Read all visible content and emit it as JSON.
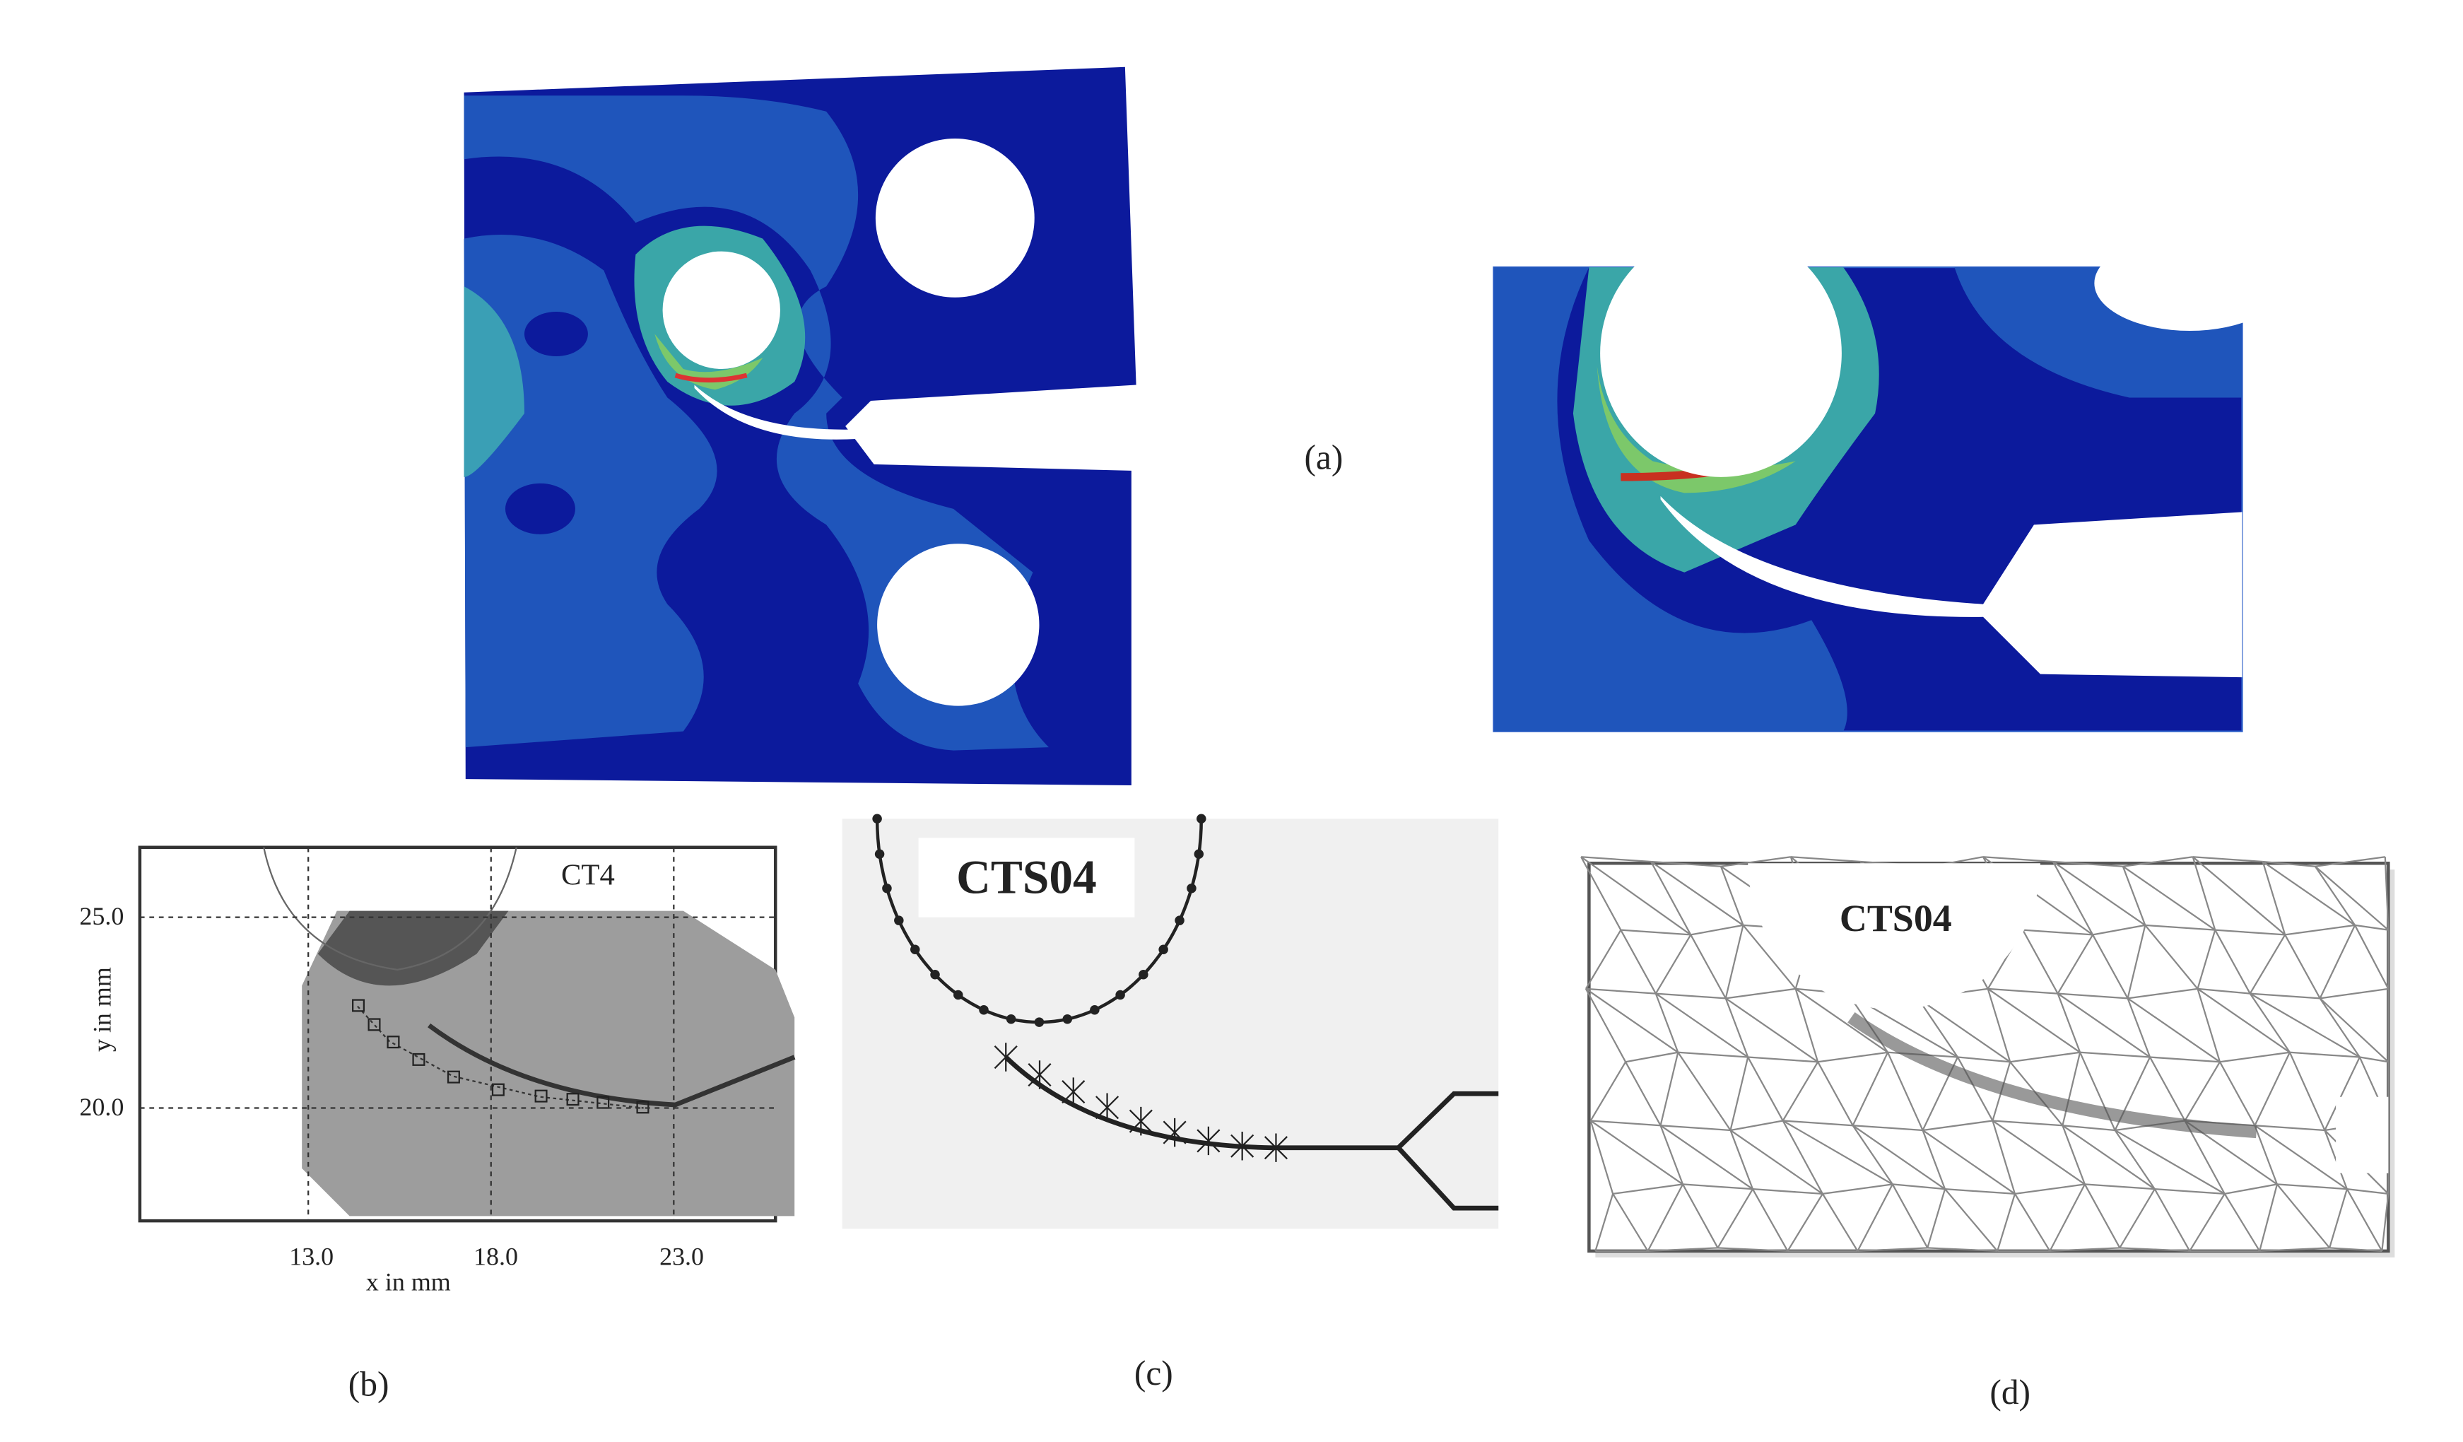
{
  "panels": [
    {
      "label": "(a)"
    },
    {
      "label": "(b)",
      "specimen": "CT4",
      "x_axis": {
        "title": "x in mm",
        "ticks": [
          "13.0",
          "18.0",
          "23.0"
        ]
      },
      "y_axis": {
        "title": "y in mm",
        "ticks": [
          "25.0",
          "20.0"
        ]
      }
    },
    {
      "label": "(c)",
      "specimen": "CTS04"
    },
    {
      "label": "(d)",
      "specimen": "CTS04"
    }
  ]
}
